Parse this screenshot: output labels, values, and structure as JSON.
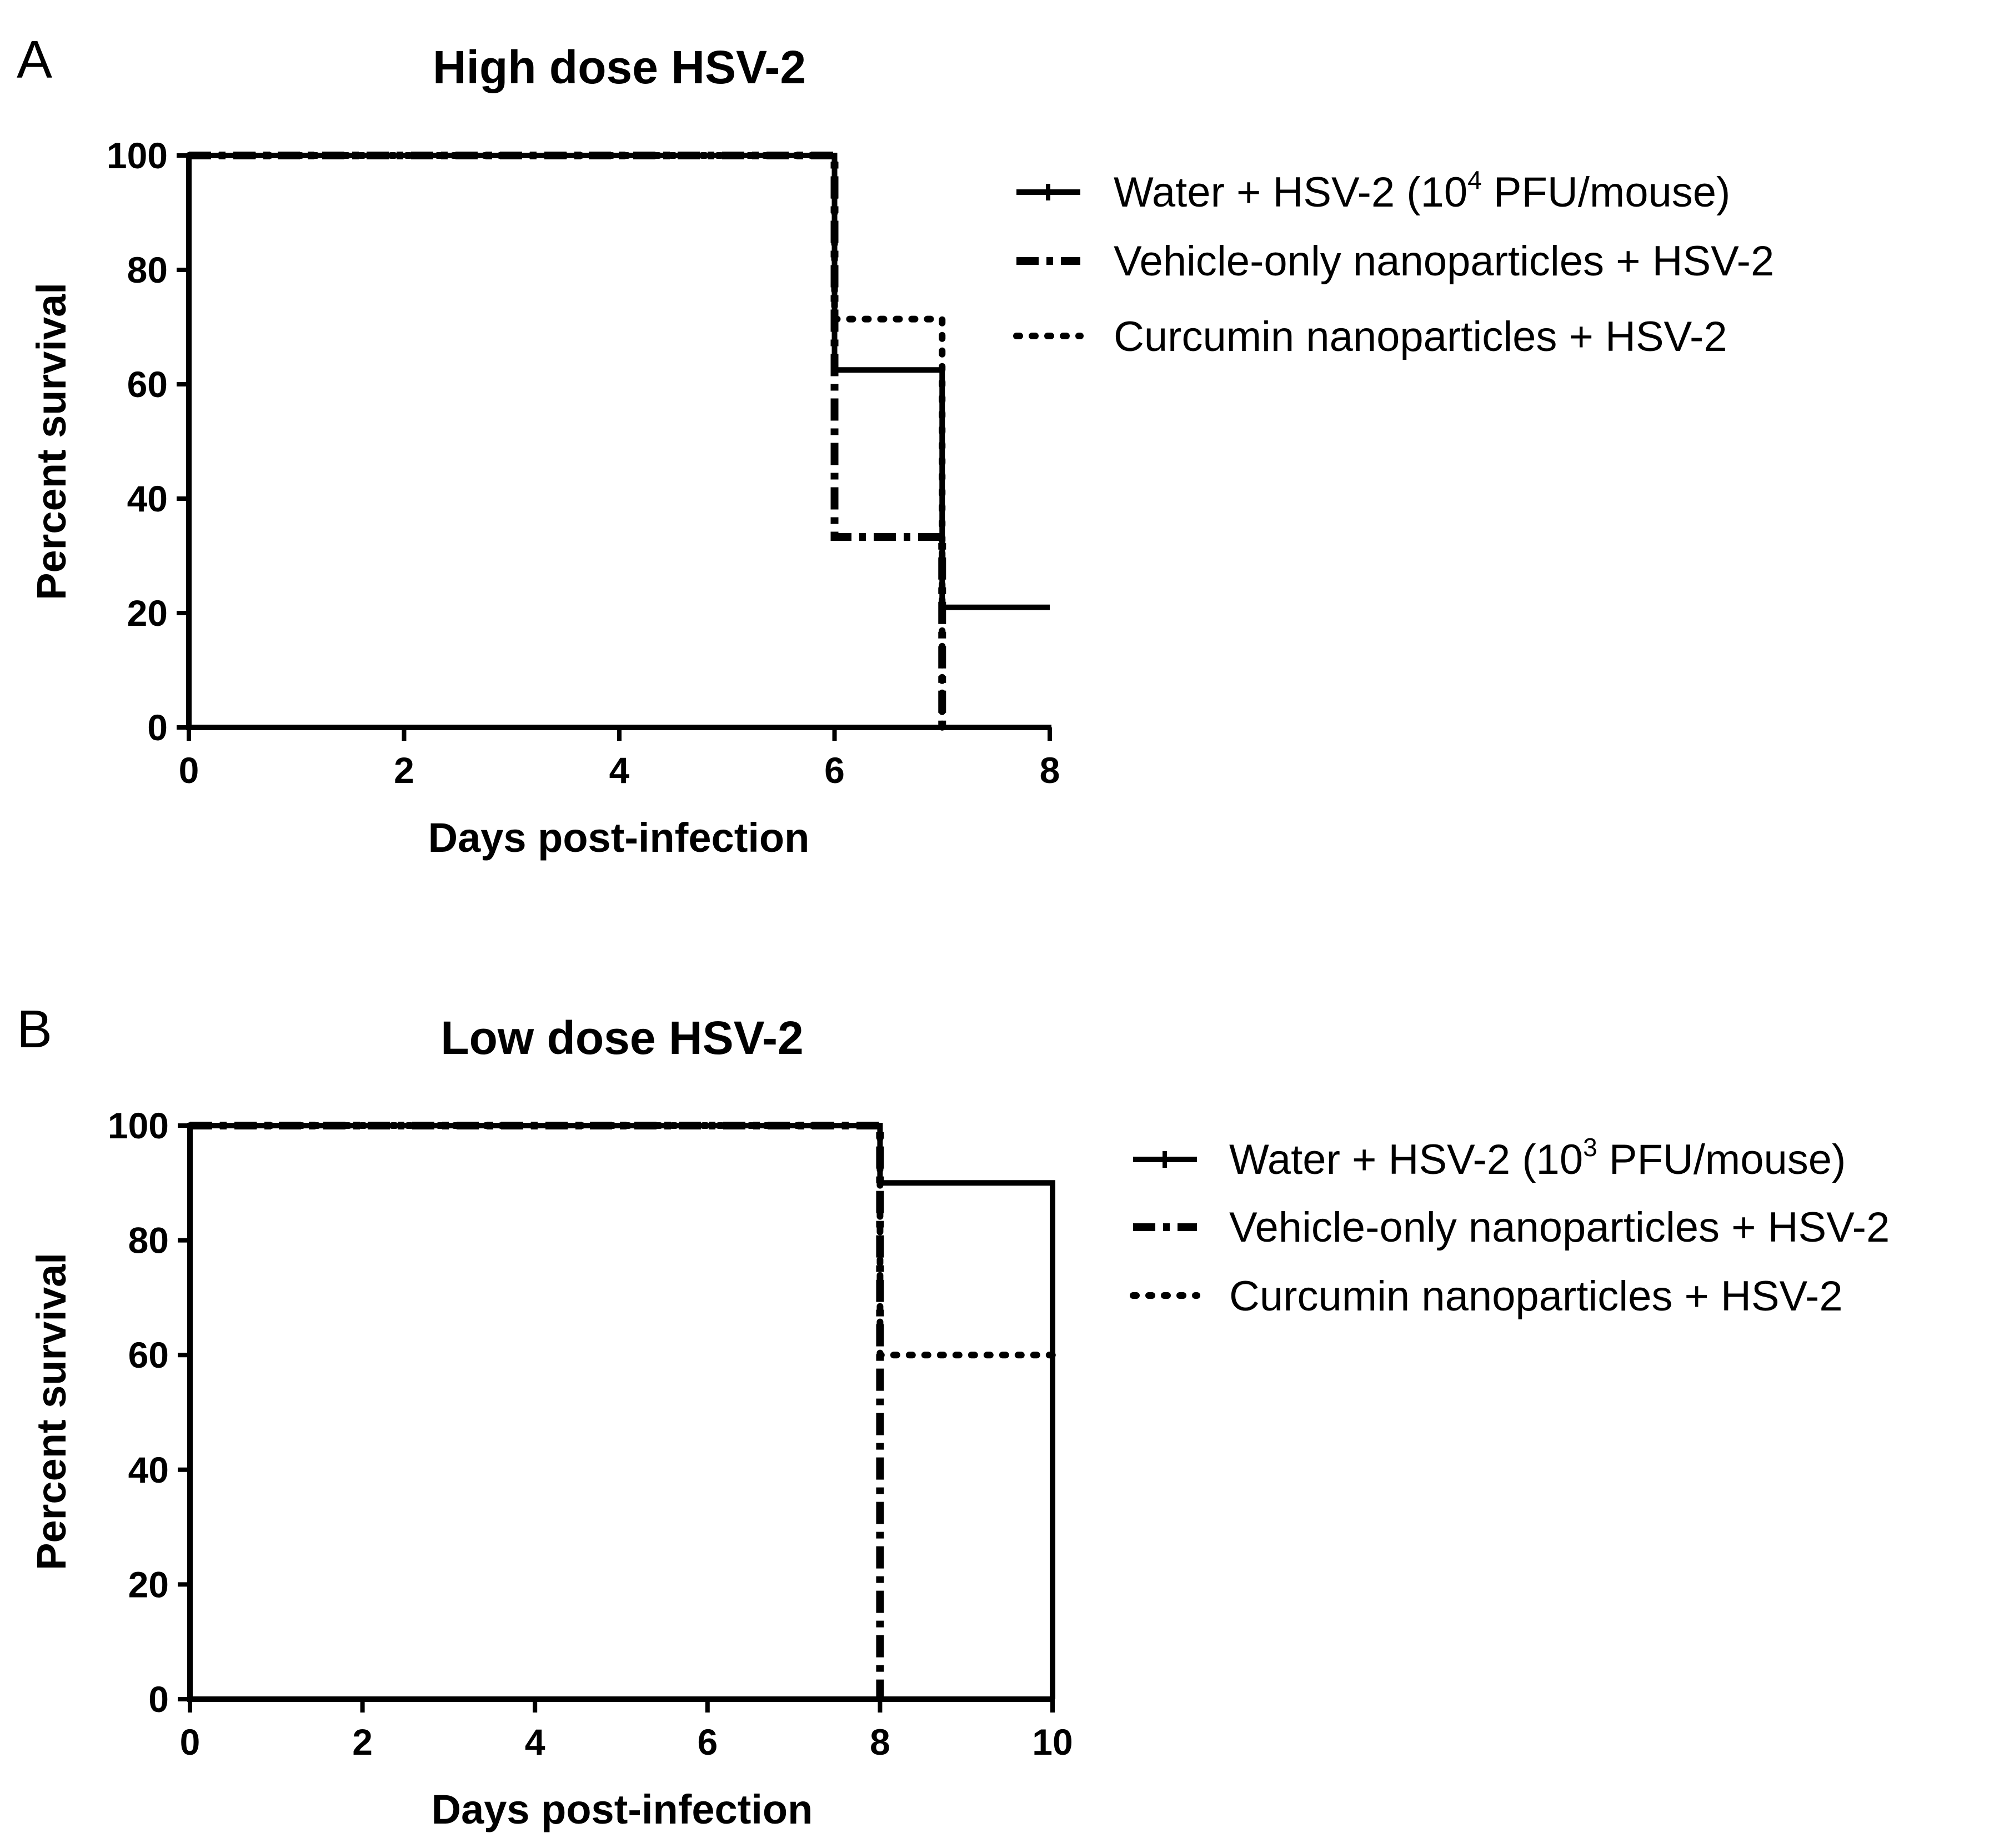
{
  "chart_data": [
    {
      "type": "line",
      "panel": "A",
      "title": "High dose HSV-2",
      "xlabel": "Days post-infection",
      "ylabel": "Percent survival",
      "xlim": [
        0,
        8
      ],
      "ylim": [
        0,
        100
      ],
      "x_ticks": [
        0,
        2,
        4,
        6,
        8
      ],
      "y_ticks": [
        0,
        20,
        40,
        60,
        80,
        100
      ],
      "grid": false,
      "legend_position": "right",
      "series": [
        {
          "name": "Water + HSV-2 (10",
          "name_superscript": "4",
          "name_suffix": " PFU/mouse)",
          "style": "solid",
          "x": [
            0,
            6,
            7,
            8
          ],
          "y": [
            100,
            62.5,
            21,
            21
          ]
        },
        {
          "name": "Vehicle-only nanoparticles + HSV-2",
          "style": "dashed",
          "x": [
            0,
            6,
            7
          ],
          "y": [
            100,
            33.3,
            0
          ]
        },
        {
          "name": "Curcumin nanoparticles + HSV-2",
          "style": "dotted",
          "x": [
            0,
            6,
            7
          ],
          "y": [
            100,
            71.4,
            0
          ]
        }
      ]
    },
    {
      "type": "line",
      "panel": "B",
      "title": "Low dose HSV-2",
      "xlabel": "Days post-infection",
      "ylabel": "Percent survival",
      "xlim": [
        0,
        10
      ],
      "ylim": [
        0,
        100
      ],
      "x_ticks": [
        0,
        2,
        4,
        6,
        8,
        10
      ],
      "y_ticks": [
        0,
        20,
        40,
        60,
        80,
        100
      ],
      "grid": false,
      "legend_position": "right",
      "series": [
        {
          "name": "Water + HSV-2 (10",
          "name_superscript": "3",
          "name_suffix": " PFU/mouse)",
          "style": "solid",
          "x": [
            0,
            8,
            10
          ],
          "y": [
            100,
            90,
            0
          ]
        },
        {
          "name": "Vehicle-only nanoparticles + HSV-2",
          "style": "dashed",
          "x": [
            0,
            8
          ],
          "y": [
            100,
            0
          ]
        },
        {
          "name": "Curcumin nanoparticles + HSV-2",
          "style": "dotted",
          "x": [
            0,
            8,
            10
          ],
          "y": [
            100,
            60,
            60
          ]
        }
      ]
    }
  ]
}
